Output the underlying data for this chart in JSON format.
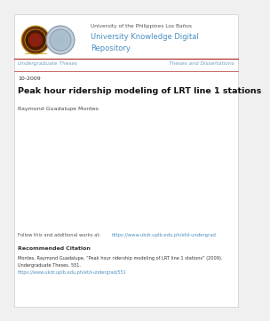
{
  "bg_color": "#f0f0f0",
  "content_bg": "#ffffff",
  "header_small_text": "University of the Philippines Los Baños",
  "header_big_text_line1": "University Knowledge Digital",
  "header_big_text_line2": "Repository",
  "header_color": "#4a8fc0",
  "header_small_color": "#555555",
  "nav_left": "Undergraduate Theses",
  "nav_right": "Theses and Dissertations",
  "nav_color": "#6a9fc0",
  "nav_line_color": "#b03030",
  "date": "10-2009",
  "date_color": "#333333",
  "title": "Peak hour ridership modeling of LRT line 1 stations",
  "title_color": "#111111",
  "author": "Raymond Guadalupe Montes",
  "author_color": "#444444",
  "follow_text": "Follow this and additional works at: ",
  "follow_link": "https://www.ukdr.uplb.edu.ph/etd-undergrad",
  "follow_color": "#555555",
  "link_color": "#4a8fc0",
  "rec_title": "Recommended Citation",
  "rec_body_line1": "Montes, Raymond Guadalupe, “Peak hour ridership modeling of LRT line 1 stations” (2009).",
  "rec_body_line2": "Undergraduate Theses. 551.",
  "rec_link": "https://www.ukdr.uplb.edu.ph/etd-undergrad/551",
  "rec_color": "#333333",
  "logo1_outer": "#7a3010",
  "logo1_inner": "#5a1a00",
  "logo1_ring": "#c8a840",
  "logo2_outer": "#d0dce8",
  "logo2_inner": "#b8ccd8",
  "logo2_ring": "#90a8c0"
}
